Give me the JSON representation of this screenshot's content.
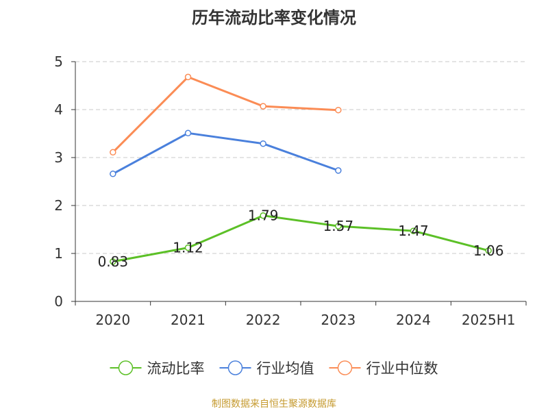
{
  "chart_data": {
    "type": "line",
    "title": "历年流动比率变化情况",
    "categories": [
      "2020",
      "2021",
      "2022",
      "2023",
      "2024",
      "2025H1"
    ],
    "ylim": [
      0,
      5
    ],
    "yticks": [
      0,
      1,
      2,
      3,
      4,
      5
    ],
    "grid": true,
    "legend_position": "bottom",
    "series": [
      {
        "name": "流动比率",
        "color": "#5cc027",
        "values": [
          0.83,
          1.12,
          1.79,
          1.57,
          1.47,
          1.06
        ],
        "data_labels": [
          "0.83",
          "1.12",
          "1.79",
          "1.57",
          "1.47",
          "1.06"
        ]
      },
      {
        "name": "行业均值",
        "color": "#4a80dc",
        "values": [
          2.66,
          3.51,
          3.29,
          2.73,
          null,
          null
        ]
      },
      {
        "name": "行业中位数",
        "color": "#fb8c55",
        "values": [
          3.11,
          4.68,
          4.07,
          3.99,
          null,
          null
        ]
      }
    ]
  },
  "source_note": "制图数据来自恒生聚源数据库",
  "source_color": "#c59a2f"
}
